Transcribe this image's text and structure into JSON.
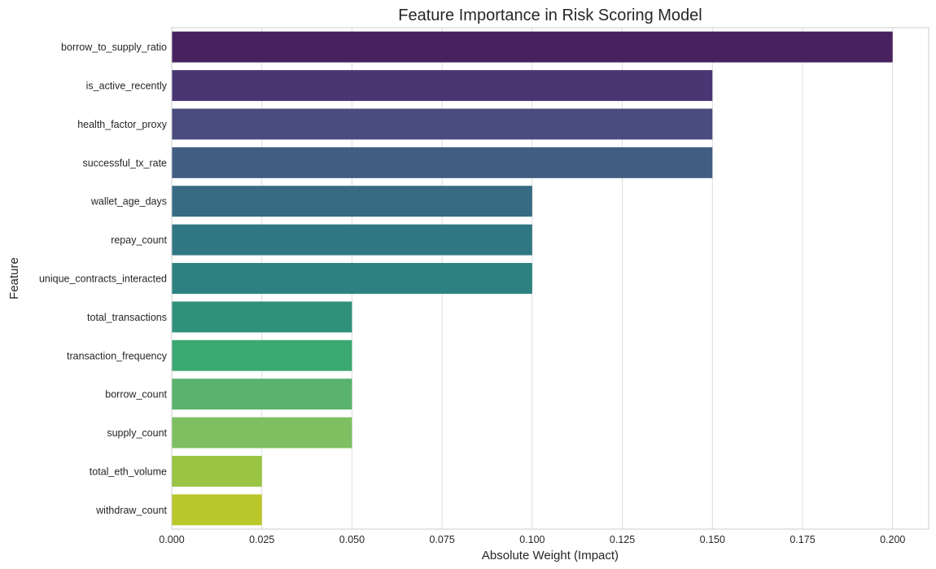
{
  "chart_data": {
    "type": "bar",
    "orientation": "horizontal",
    "title": "Feature Importance in Risk Scoring Model",
    "xlabel": "Absolute Weight (Impact)",
    "ylabel": "Feature",
    "xlim": [
      0,
      0.21
    ],
    "xticks": [
      "0.000",
      "0.025",
      "0.050",
      "0.075",
      "0.100",
      "0.125",
      "0.150",
      "0.175",
      "0.200"
    ],
    "grid": true,
    "categories": [
      "borrow_to_supply_ratio",
      "is_active_recently",
      "health_factor_proxy",
      "successful_tx_rate",
      "wallet_age_days",
      "repay_count",
      "unique_contracts_interacted",
      "total_transactions",
      "transaction_frequency",
      "borrow_count",
      "supply_count",
      "total_eth_volume",
      "withdraw_count"
    ],
    "values": [
      0.2,
      0.15,
      0.15,
      0.15,
      0.1,
      0.1,
      0.1,
      0.05,
      0.05,
      0.05,
      0.05,
      0.025,
      0.025
    ],
    "colors": [
      "#48215f",
      "#4b3674",
      "#4a4c7f",
      "#415d82",
      "#366b83",
      "#317783",
      "#2d8281",
      "#2f917a",
      "#3ca872",
      "#59b26e",
      "#7ebf62",
      "#9ac443",
      "#bac72b"
    ]
  }
}
